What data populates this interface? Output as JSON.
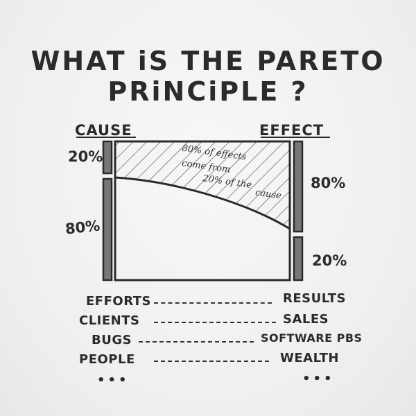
{
  "title": {
    "line1": "WHAT iS THE PARETO",
    "line2": "PRiNCiPLE ?"
  },
  "diagram": {
    "cause_label": "CAUSE",
    "effect_label": "EFFECT",
    "cause_top_pct": "20%",
    "cause_bottom_pct": "80%",
    "effect_top_pct": "80%",
    "effect_bottom_pct": "20%",
    "annotation": {
      "line1": "80% of effects",
      "line2": "come from",
      "line3": "20% of the",
      "line4": "cause"
    }
  },
  "examples": [
    {
      "cause": "EFFORTS",
      "effect": "RESULTS"
    },
    {
      "cause": "CLIENTS",
      "effect": "SALES"
    },
    {
      "cause": "BUGS",
      "effect": "SOFTWARE PBS"
    },
    {
      "cause": "PEOPLE",
      "effect": "WEALTH"
    }
  ],
  "ellipsis_left": "•••",
  "ellipsis_right": "•••"
}
